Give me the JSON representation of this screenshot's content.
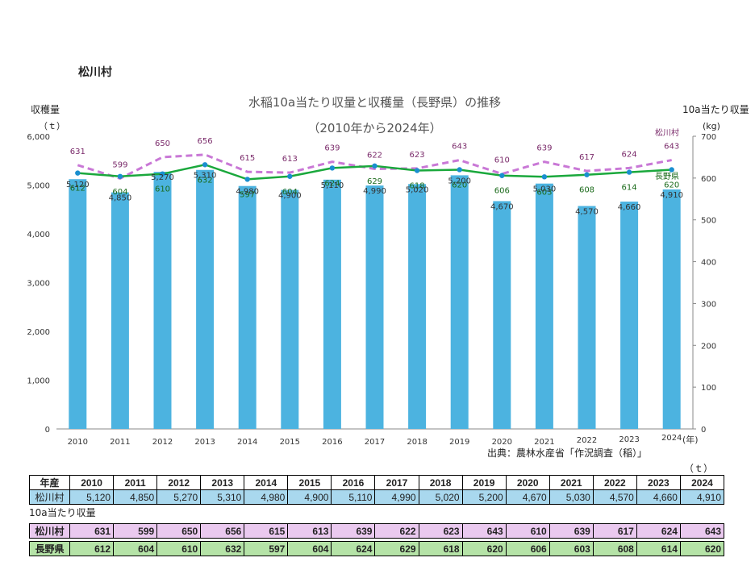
{
  "village_title": "松川村",
  "source_note": "出典：農林水産省「作況調査（稲）」",
  "table_unit": "（ｔ）",
  "chart_data": {
    "type": "bar+line",
    "title": "水稲10a当たり収量と収穫量（長野県）の推移",
    "subtitle": "（2010年から2024年）",
    "ylabel_left": "収穫量",
    "ylabel_left_unit": "（ｔ）",
    "ylabel_right": "10a当たり収量",
    "ylabel_right_unit": "(kg)",
    "x_unit": "(年)",
    "categories": [
      "2010",
      "2011",
      "2012",
      "2013",
      "2014",
      "2015",
      "2016",
      "2017",
      "2018",
      "2019",
      "2020",
      "2021",
      "2022",
      "2023",
      "2024"
    ],
    "ylim_left": [
      0,
      6000
    ],
    "yticks_left": [
      "0",
      "1,000",
      "2,000",
      "3,000",
      "4,000",
      "5,000",
      "6,000"
    ],
    "ylim_right": [
      0,
      700
    ],
    "yticks_right": [
      "0",
      "100",
      "200",
      "300",
      "400",
      "500",
      "600",
      "700"
    ],
    "bar_series": {
      "name": "松川村 収穫量",
      "color": "#4cb3e0",
      "values": [
        5120,
        4850,
        5270,
        5310,
        4980,
        4900,
        5110,
        4990,
        5020,
        5200,
        4670,
        5030,
        4570,
        4660,
        4910
      ],
      "labels": [
        "5,120",
        "4,850",
        "5,270",
        "5,310",
        "4,980",
        "4,900",
        "5,110",
        "4,990",
        "5,020",
        "5,200",
        "4,670",
        "5,030",
        "4,570",
        "4,660",
        "4,910"
      ]
    },
    "line_series": [
      {
        "name": "松川村",
        "color": "#c978d6",
        "label_color": "#7a2a6a",
        "style": "dashed",
        "values": [
          631,
          599,
          650,
          656,
          615,
          613,
          639,
          622,
          623,
          643,
          610,
          639,
          617,
          624,
          643
        ]
      },
      {
        "name": "長野県",
        "color": "#1aa83c",
        "label_color": "#1a6a1a",
        "style": "solid",
        "values": [
          612,
          604,
          610,
          632,
          597,
          604,
          624,
          629,
          618,
          620,
          606,
          603,
          608,
          614,
          620
        ]
      }
    ]
  },
  "harvest_table": {
    "header_label": "年産",
    "years": [
      "2010",
      "2011",
      "2012",
      "2013",
      "2014",
      "2015",
      "2016",
      "2017",
      "2018",
      "2019",
      "2020",
      "2021",
      "2022",
      "2023",
      "2024"
    ],
    "row_label": "松川村",
    "values": [
      "5,120",
      "4,850",
      "5,270",
      "5,310",
      "4,980",
      "4,900",
      "5,110",
      "4,990",
      "5,020",
      "5,200",
      "4,670",
      "5,030",
      "4,570",
      "4,660",
      "4,910"
    ]
  },
  "yield_table": {
    "title": "10a当たり収量",
    "rows": [
      {
        "label": "松川村",
        "values": [
          "631",
          "599",
          "650",
          "656",
          "615",
          "613",
          "639",
          "622",
          "623",
          "643",
          "610",
          "639",
          "617",
          "624",
          "643"
        ]
      },
      {
        "label": "長野県",
        "values": [
          "612",
          "604",
          "610",
          "632",
          "597",
          "604",
          "624",
          "629",
          "618",
          "620",
          "606",
          "603",
          "608",
          "614",
          "620"
        ]
      }
    ]
  }
}
